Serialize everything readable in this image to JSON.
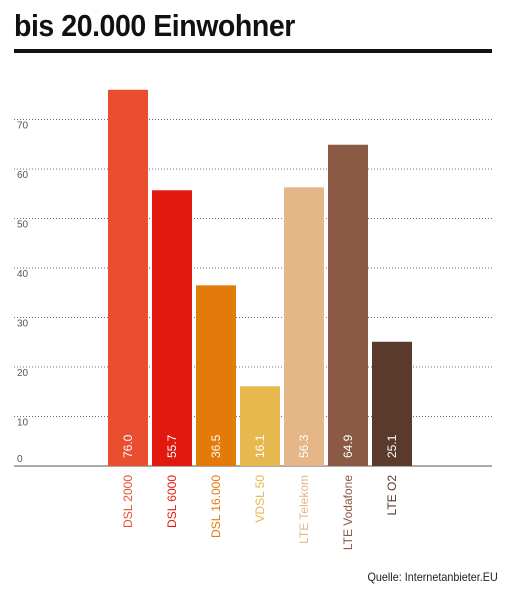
{
  "header": {
    "title": "bis 20.000 Einwohner"
  },
  "source": "Quelle: Internetanbieter.EU",
  "chart_data": {
    "type": "bar",
    "title": "bis 20.000 Einwohner",
    "xlabel": "",
    "ylabel": "",
    "ylim": [
      0,
      75
    ],
    "y_ticks": [
      0,
      10,
      20,
      30,
      40,
      50,
      60,
      70
    ],
    "grid": true,
    "categories": [
      "DSL 2000",
      "DSL 6000",
      "DSL 16.000",
      "VDSL 50",
      "LTE Telekom",
      "LTE Vodafone",
      "LTE O2"
    ],
    "values": [
      76.0,
      55.7,
      36.5,
      16.1,
      56.3,
      64.9,
      25.1
    ],
    "value_labels": [
      "76.0",
      "55.7",
      "36.5",
      "16.1",
      "56.3",
      "64.9",
      "25.1"
    ],
    "colors": [
      "#e84e2f",
      "#e2190f",
      "#e27b0a",
      "#e6b84e",
      "#e4b688",
      "#8a5a45",
      "#5a3a2a"
    ],
    "label_colors": [
      "#e84e2f",
      "#e2190f",
      "#e27b0a",
      "#e6b84e",
      "#e4b688",
      "#8a5a45",
      "#5a3a2a"
    ]
  }
}
